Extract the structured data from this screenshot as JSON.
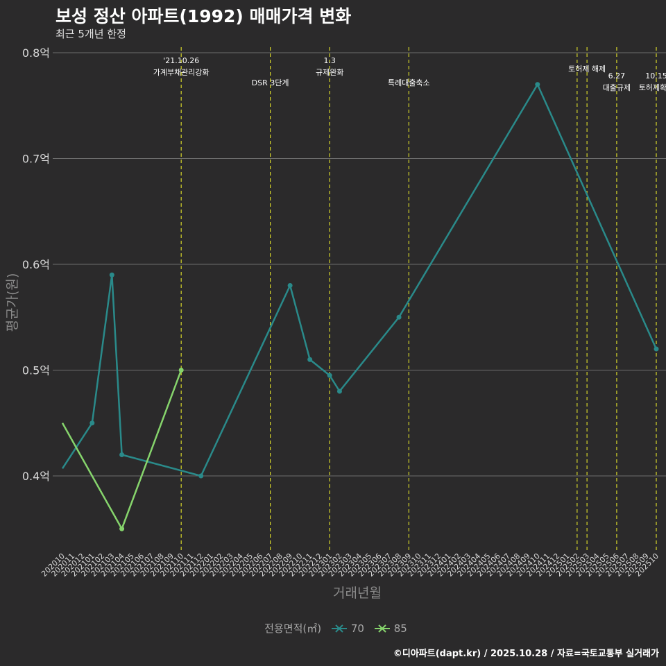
{
  "title": "보성 정산 아파트(1992) 매매가격 변화",
  "subtitle": "최근 5개년 한정",
  "caption": "©디아파트(dapt.kr) / 2025.10.28 / 자료=국토교통부 실거래가",
  "colors": {
    "background": "#2b2a2b",
    "grid": "#6e6e6e",
    "event_line": "#d6d62a",
    "series_70": "#2a8a8a",
    "series_85": "#86d46c",
    "axis_text": "#d9d9d9",
    "axis_title": "#8a8a8a"
  },
  "chart_data": {
    "type": "line",
    "title": "보성 정산 아파트(1992) 매매가격 변화",
    "xlabel": "거래년월",
    "ylabel": "평균가(원)",
    "ylim": [
      0.33,
      0.8
    ],
    "yticks": [
      0.4,
      0.5,
      0.6,
      0.7,
      0.8
    ],
    "ytick_labels": [
      "0.4억",
      "0.5억",
      "0.6억",
      "0.7억",
      "0.8억"
    ],
    "categories": [
      "202010",
      "202011",
      "202012",
      "202101",
      "202102",
      "202103",
      "202104",
      "202105",
      "202106",
      "202107",
      "202108",
      "202109",
      "202110",
      "202111",
      "202112",
      "202201",
      "202202",
      "202203",
      "202204",
      "202205",
      "202206",
      "202207",
      "202208",
      "202209",
      "202210",
      "202211",
      "202212",
      "202301",
      "202302",
      "202303",
      "202304",
      "202305",
      "202306",
      "202307",
      "202308",
      "202309",
      "202310",
      "202311",
      "202312",
      "202401",
      "202402",
      "202403",
      "202404",
      "202405",
      "202406",
      "202407",
      "202408",
      "202409",
      "202410",
      "202411",
      "202412",
      "202501",
      "202502",
      "202503",
      "202504",
      "202505",
      "202506",
      "202507",
      "202508",
      "202509",
      "202510"
    ],
    "legend_title": "전용면적(㎡)",
    "series": [
      {
        "name": "70",
        "colorKey": "series_70",
        "points": [
          [
            "202010",
            0.407
          ],
          [
            "202101",
            0.45
          ],
          [
            "202103",
            0.59
          ],
          [
            "202104",
            0.42
          ],
          [
            "202112",
            0.4
          ],
          [
            "202209",
            0.58
          ],
          [
            "202211",
            0.51
          ],
          [
            "202301",
            0.495
          ],
          [
            "202302",
            0.48
          ],
          [
            "202308",
            0.55
          ],
          [
            "202410",
            0.77
          ],
          [
            "202510",
            0.52
          ]
        ],
        "markers": [
          "202101",
          "202103",
          "202104",
          "202112",
          "202209",
          "202211",
          "202301",
          "202302",
          "202308",
          "202410",
          "202510"
        ]
      },
      {
        "name": "85",
        "colorKey": "series_85",
        "points": [
          [
            "202010",
            0.45
          ],
          [
            "202104",
            0.35
          ],
          [
            "202110",
            0.5
          ]
        ],
        "markers": [
          "202104",
          "202110"
        ]
      }
    ],
    "events": [
      {
        "x": "202110",
        "offset": 0.0,
        "lines": [
          "'21.10.26",
          "가계부채관리강화"
        ],
        "row": 0
      },
      {
        "x": "202207",
        "offset": 0.0,
        "lines": [
          "DSR 3단계"
        ],
        "row": 1
      },
      {
        "x": "202301",
        "offset": 0.0,
        "lines": [
          "1.3",
          "규제완화"
        ],
        "row": 0
      },
      {
        "x": "202309",
        "offset": 0.0,
        "lines": [
          "특례대출축소"
        ],
        "row": 1
      },
      {
        "x": "202502",
        "offset": 0.0,
        "lines": [],
        "row": 0
      },
      {
        "x": "202503",
        "offset": 0.0,
        "lines": [
          "토허제 해제"
        ],
        "row": 0
      },
      {
        "x": "202506",
        "offset": 0.0,
        "lines": [
          "6.27",
          "대출규제"
        ],
        "row": 2
      },
      {
        "x": "202510",
        "offset": 0.0,
        "lines": [
          "10.15",
          "토허제확대"
        ],
        "row": 2
      }
    ]
  }
}
